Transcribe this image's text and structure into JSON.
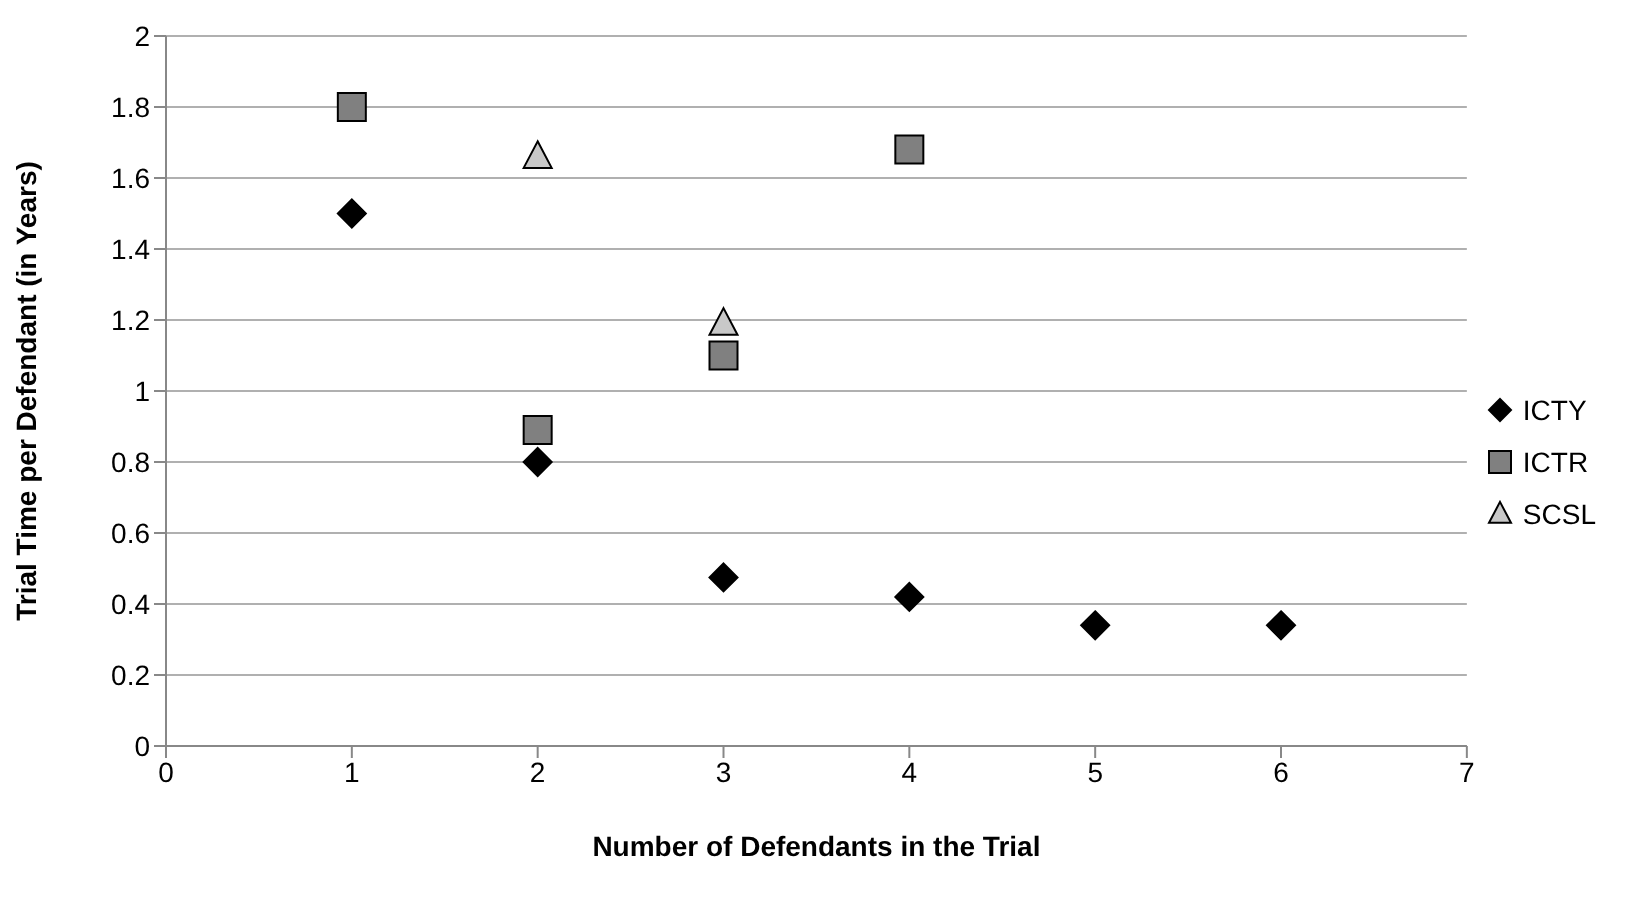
{
  "chart_data": {
    "type": "scatter",
    "xlabel": "Number of Defendants in the Trial",
    "ylabel": "Trial Time per Defendant (in Years)",
    "xlim": [
      0,
      7
    ],
    "xticks": [
      0,
      1,
      2,
      3,
      4,
      5,
      6,
      7
    ],
    "ylim": [
      0,
      2
    ],
    "yticks": [
      0,
      {
        "value": 0.2,
        "label": "0.2"
      },
      {
        "value": 0.4,
        "label": "0.4"
      },
      {
        "value": 0.6,
        "label": "0.6"
      },
      {
        "value": 0.8,
        "label": "0.8"
      },
      1,
      {
        "value": 1.2,
        "label": "1.2"
      },
      {
        "value": 1.4,
        "label": "1.4"
      },
      {
        "value": 1.6,
        "label": "1.6"
      },
      {
        "value": 1.8,
        "label": "1.8"
      },
      2
    ],
    "grid": "y",
    "legend": "right",
    "series": [
      {
        "name": "ICTY",
        "color": "#000000",
        "marker": "diamond",
        "x": [
          1,
          2,
          3,
          4,
          5,
          6
        ],
        "values": [
          1.5,
          0.8,
          0.475,
          0.42,
          0.34,
          0.34
        ]
      },
      {
        "name": "ICTR",
        "color": "#808080",
        "marker": "square",
        "x": [
          1,
          2,
          3,
          4
        ],
        "values": [
          1.8,
          0.89,
          1.1,
          1.68
        ]
      },
      {
        "name": "SCSL",
        "color": "#c8c8c8",
        "marker": "triangle",
        "x": [
          2,
          3
        ],
        "values": [
          1.66,
          1.19
        ]
      }
    ]
  }
}
